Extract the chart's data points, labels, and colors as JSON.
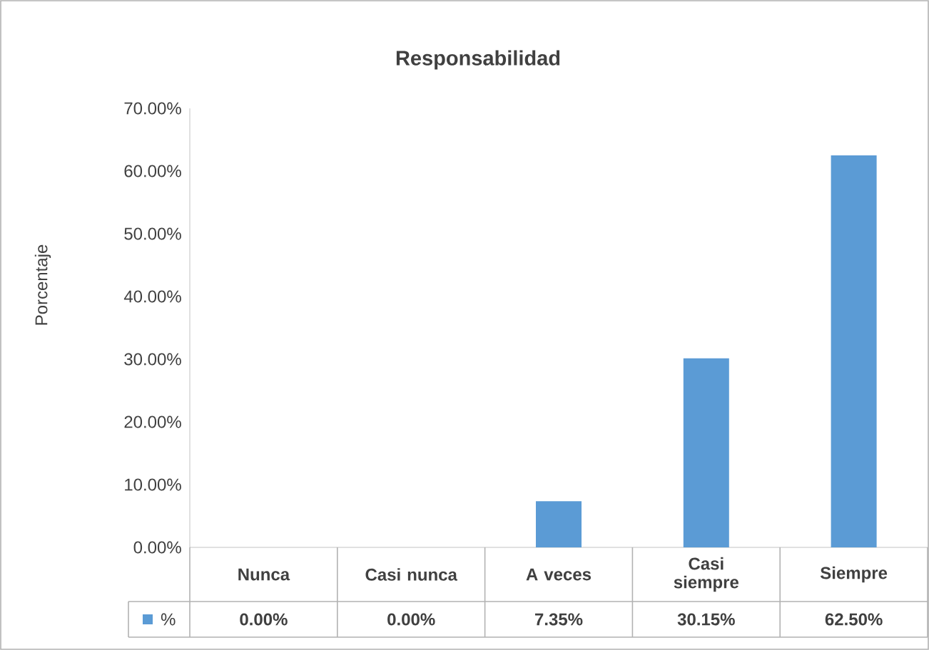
{
  "chart_data": {
    "type": "bar",
    "title": "Responsabilidad",
    "ylabel": "Porcentaje",
    "categories": [
      "Nunca",
      "Casi nunca",
      "A veces",
      "Casi siempre",
      "Siempre"
    ],
    "series": [
      {
        "name": "%",
        "color": "#5b9bd5",
        "values": [
          0,
          0,
          7.35,
          30.15,
          62.5
        ],
        "value_labels": [
          "0.00%",
          "0.00%",
          "7.35%",
          "30.15%",
          "62.50%"
        ]
      }
    ],
    "ylim": [
      0,
      70
    ],
    "yticks": [
      {
        "value": 0,
        "label": "0.00%"
      },
      {
        "value": 10,
        "label": "10.00%"
      },
      {
        "value": 20,
        "label": "20.00%"
      },
      {
        "value": 30,
        "label": "30.00%"
      },
      {
        "value": 40,
        "label": "40.00%"
      },
      {
        "value": 50,
        "label": "50.00%"
      },
      {
        "value": 60,
        "label": "60.00%"
      },
      {
        "value": 70,
        "label": "70.00%"
      }
    ]
  }
}
